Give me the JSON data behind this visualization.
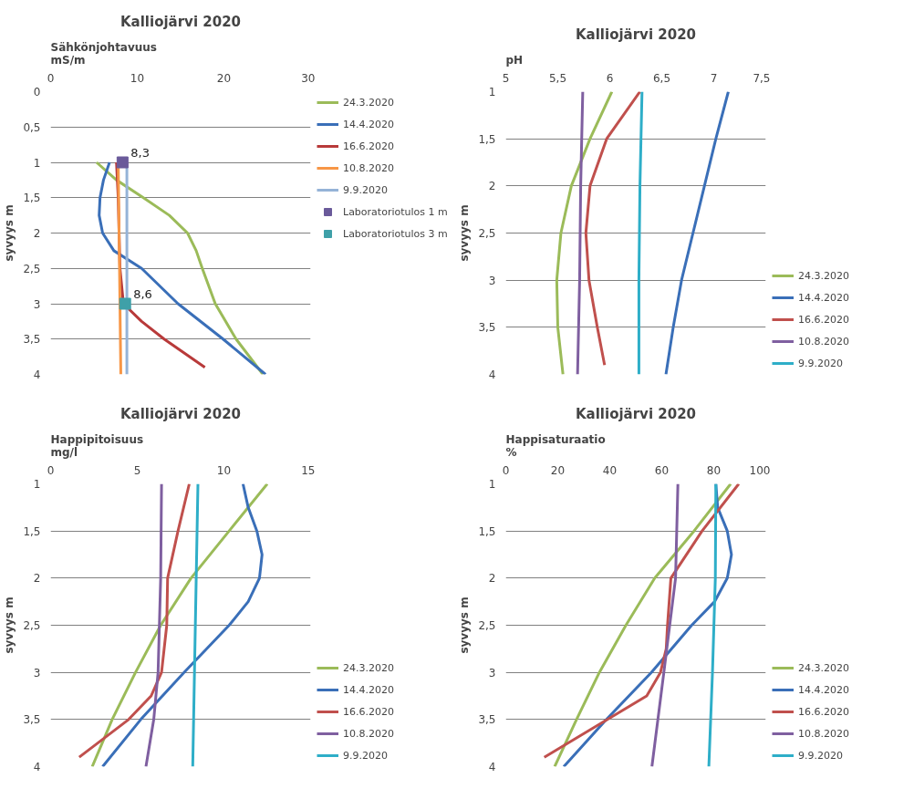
{
  "chart_data": [
    {
      "type": "line",
      "title": "Kalliojärvi 2020",
      "xlabel": "Sähkönjohtavuus\nmS/m",
      "ylabel": "syvyys m",
      "xlim": [
        0,
        30
      ],
      "xticks": [
        0,
        10,
        20,
        30
      ],
      "ylim": [
        4,
        0
      ],
      "yticks": [
        0,
        {
          "value": 0.5,
          "label": "0,5"
        },
        1,
        {
          "value": 1.5,
          "label": "1,5"
        },
        2,
        {
          "value": 2.5,
          "label": "2,5"
        },
        3,
        {
          "value": 3.5,
          "label": "3,5"
        },
        4
      ],
      "grid": "y",
      "legend": "top right",
      "marker": "none",
      "line_style": "solid",
      "series": [
        {
          "name": "24.3.2020",
          "color": "#9bbb59",
          "x": [
            5.3,
            7.6,
            10.7,
            13.7,
            15.8,
            16.8,
            17.5,
            19.0,
            21.4,
            24.5
          ],
          "values": [
            1,
            1.25,
            1.5,
            1.75,
            2,
            2.25,
            2.5,
            3,
            3.5,
            4
          ]
        },
        {
          "name": "14.4.2020",
          "color": "#3a6fb8",
          "x": [
            6.8,
            6.1,
            5.7,
            5.6,
            6.0,
            7.3,
            10.5,
            14.7,
            19.9,
            24.8
          ],
          "values": [
            1,
            1.25,
            1.5,
            1.75,
            2,
            2.25,
            2.5,
            3,
            3.5,
            4
          ]
        },
        {
          "name": "16.6.2020",
          "color": "#b83a3a",
          "x": [
            7.6,
            7.8,
            7.9,
            8.0,
            8.4,
            10.5,
            13.1,
            17.8
          ],
          "values": [
            1,
            1.5,
            2,
            2.5,
            3,
            3.25,
            3.5,
            3.9
          ]
        },
        {
          "name": "10.8.2020",
          "color": "#f79646",
          "x": [
            7.8,
            7.9,
            8.0,
            8.1
          ],
          "values": [
            1,
            2,
            3,
            4
          ]
        },
        {
          "name": "9.9.2020",
          "color": "#95b3d7",
          "x": [
            8.8,
            8.8,
            8.8,
            8.8
          ],
          "values": [
            1,
            2,
            3,
            4
          ]
        },
        {
          "name": "Laboratoriotulos 1 m",
          "type": "scatter",
          "marker": "square",
          "color": "#6a5a9a",
          "x": [
            8.3
          ],
          "values": [
            1
          ]
        },
        {
          "name": "Laboratoriotulos 3 m",
          "type": "scatter",
          "marker": "square",
          "color": "#3fa0a8",
          "x": [
            8.6
          ],
          "values": [
            3
          ]
        }
      ],
      "annotations": [
        {
          "text": "8,3",
          "x": 8.3,
          "y": 1
        },
        {
          "text": "8,6",
          "x": 8.6,
          "y": 3
        }
      ]
    },
    {
      "type": "line",
      "title": "Kalliojärvi 2020",
      "xlabel": "pH",
      "ylabel": "syvyys m",
      "xlim": [
        5,
        7.5
      ],
      "xticks": [
        5,
        {
          "value": 5.5,
          "label": "5,5"
        },
        6,
        {
          "value": 6.5,
          "label": "6,5"
        },
        7,
        {
          "value": 7.5,
          "label": "7,5"
        }
      ],
      "ylim": [
        4,
        1
      ],
      "yticks": [
        1,
        {
          "value": 1.5,
          "label": "1,5"
        },
        2,
        {
          "value": 2.5,
          "label": "2,5"
        },
        3,
        {
          "value": 3.5,
          "label": "3,5"
        },
        4
      ],
      "grid": "y",
      "legend": "bottom right",
      "marker": "none",
      "line_style": "solid",
      "series": [
        {
          "name": "24.3.2020",
          "color": "#9bbb59",
          "x": [
            6.02,
            5.81,
            5.63,
            5.53,
            5.49,
            5.5,
            5.55
          ],
          "values": [
            1,
            1.5,
            2,
            2.5,
            3,
            3.5,
            4
          ]
        },
        {
          "name": "14.4.2020",
          "color": "#3a6fb8",
          "x": [
            7.14,
            7.02,
            6.91,
            6.8,
            6.69,
            6.61,
            6.54
          ],
          "values": [
            1,
            1.5,
            2,
            2.5,
            3,
            3.5,
            4
          ]
        },
        {
          "name": "16.6.2020",
          "color": "#c0504d",
          "x": [
            6.29,
            5.97,
            5.81,
            5.77,
            5.8,
            5.88,
            5.95
          ],
          "values": [
            1,
            1.5,
            2,
            2.5,
            3,
            3.5,
            3.9
          ]
        },
        {
          "name": "10.8.2020",
          "color": "#7f5fa0",
          "x": [
            5.74,
            5.72,
            5.71,
            5.69
          ],
          "values": [
            1,
            2,
            3,
            4
          ]
        },
        {
          "name": "9.9.2020",
          "color": "#2eaec8",
          "x": [
            6.31,
            6.29,
            6.28,
            6.28
          ],
          "values": [
            1,
            2,
            3,
            4
          ]
        }
      ]
    },
    {
      "type": "line",
      "title": "Kalliojärvi 2020",
      "xlabel": "Happipitoisuus\nmg/l",
      "ylabel": "syvyys m",
      "xlim": [
        0,
        15
      ],
      "xticks": [
        0,
        5,
        10,
        15
      ],
      "ylim": [
        4,
        1
      ],
      "yticks": [
        1,
        {
          "value": 1.5,
          "label": "1,5"
        },
        2,
        {
          "value": 2.5,
          "label": "2,5"
        },
        3,
        {
          "value": 3.5,
          "label": "3,5"
        },
        4
      ],
      "grid": "y",
      "legend": "bottom right",
      "marker": "none",
      "line_style": "solid",
      "series": [
        {
          "name": "24.3.2020",
          "color": "#9bbb59",
          "x": [
            12.5,
            10.3,
            8.1,
            6.35,
            4.9,
            3.55,
            2.4
          ],
          "values": [
            1,
            1.5,
            2,
            2.5,
            3,
            3.5,
            4
          ]
        },
        {
          "name": "14.4.2020",
          "color": "#3a6fb8",
          "x": [
            11.1,
            11.4,
            11.9,
            12.2,
            12.05,
            11.4,
            10.3,
            7.7,
            5.2,
            3.0
          ],
          "values": [
            1,
            1.25,
            1.5,
            1.75,
            2,
            2.25,
            2.5,
            3,
            3.5,
            4
          ]
        },
        {
          "name": "16.6.2020",
          "color": "#c0504d",
          "x": [
            8.0,
            7.35,
            6.75,
            6.7,
            6.4,
            5.8,
            4.5,
            1.65
          ],
          "values": [
            1,
            1.5,
            2,
            2.5,
            3,
            3.25,
            3.5,
            3.9
          ]
        },
        {
          "name": "10.8.2020",
          "color": "#7f5fa0",
          "x": [
            6.4,
            6.35,
            6.2,
            5.95,
            5.5
          ],
          "values": [
            1,
            2,
            3,
            3.5,
            4
          ]
        },
        {
          "name": "9.9.2020",
          "color": "#2eaec8",
          "x": [
            8.5,
            8.4,
            8.3,
            8.2
          ],
          "values": [
            1,
            2,
            3,
            4
          ]
        }
      ]
    },
    {
      "type": "line",
      "title": "Kalliojärvi 2020",
      "xlabel": "Happisaturaatio\n%",
      "ylabel": "syvyys m",
      "xlim": [
        0,
        100
      ],
      "xticks": [
        0,
        20,
        40,
        60,
        80,
        100
      ],
      "ylim": [
        4,
        1
      ],
      "yticks": [
        1,
        {
          "value": 1.5,
          "label": "1,5"
        },
        2,
        {
          "value": 2.5,
          "label": "2,5"
        },
        3,
        {
          "value": 3.5,
          "label": "3,5"
        },
        4
      ],
      "grid": "y",
      "legend": "bottom right",
      "marker": "none",
      "line_style": "solid",
      "series": [
        {
          "name": "24.3.2020",
          "color": "#9bbb59",
          "x": [
            86.5,
            72.4,
            57.3,
            46.2,
            36,
            27.2,
            18.8
          ],
          "values": [
            1,
            1.5,
            2,
            2.5,
            3,
            3.5,
            4
          ]
        },
        {
          "name": "14.4.2020",
          "color": "#3a6fb8",
          "x": [
            80.8,
            81.5,
            85.2,
            86.8,
            85.2,
            80.3,
            71.5,
            56,
            38.7,
            22.3
          ],
          "values": [
            1,
            1.25,
            1.5,
            1.75,
            2,
            2.25,
            2.5,
            3,
            3.5,
            4
          ]
        },
        {
          "name": "16.6.2020",
          "color": "#c0504d",
          "x": [
            89.6,
            75.5,
            63.5,
            62.2,
            61.7,
            59.5,
            54.2,
            39.1,
            14.8
          ],
          "values": [
            1,
            1.5,
            2,
            2.5,
            2.75,
            3,
            3.25,
            3.5,
            3.9
          ]
        },
        {
          "name": "10.8.2020",
          "color": "#7f5fa0",
          "x": [
            66.2,
            65.3,
            60.8,
            56.2
          ],
          "values": [
            1,
            2,
            3,
            4
          ]
        },
        {
          "name": "9.9.2020",
          "color": "#2eaec8",
          "x": [
            80.8,
            80.6,
            79.5,
            78.1
          ],
          "values": [
            1,
            2,
            3,
            4
          ]
        }
      ]
    }
  ]
}
